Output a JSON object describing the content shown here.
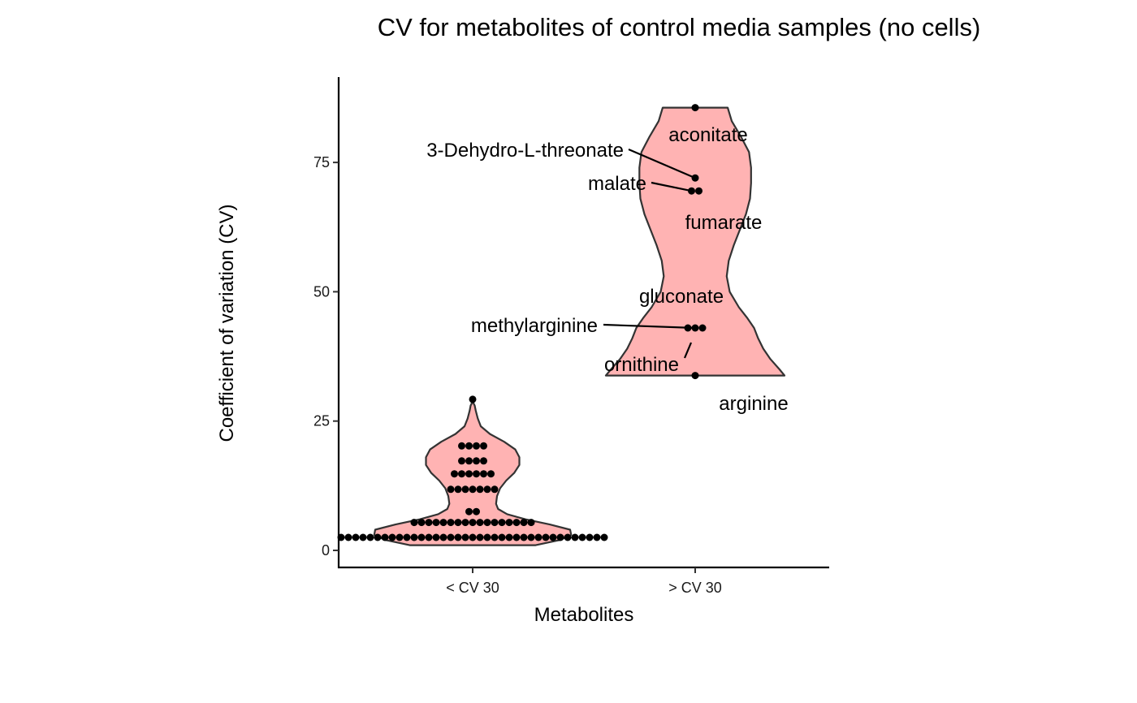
{
  "chart_data": {
    "type": "violin",
    "title": "CV for metabolites of control media samples (no cells)",
    "xlabel": "Metabolites",
    "ylabel": "Coefficient of variation (CV)",
    "categories": [
      "< CV 30",
      "> CV 30"
    ],
    "ylim": [
      -3.3,
      91.5
    ],
    "yticks": [
      0,
      25,
      50,
      75
    ],
    "grid": false,
    "legend": "none",
    "colors": {
      "violin_fill": "#ffb3b3",
      "violin_stroke": "#333333",
      "point": "#000000"
    },
    "groups": [
      {
        "category": "< CV 30",
        "levels": [
          {
            "cv": 2.5,
            "count": 37
          },
          {
            "cv": 5.4,
            "count": 17
          },
          {
            "cv": 7.5,
            "count": 2
          },
          {
            "cv": 11.8,
            "count": 7
          },
          {
            "cv": 14.8,
            "count": 6
          },
          {
            "cv": 17.3,
            "count": 4
          },
          {
            "cv": 20.2,
            "count": 4
          },
          {
            "cv": 29.2,
            "count": 1
          }
        ],
        "violin_profile": [
          [
            1.0,
            0.0
          ],
          [
            1.0,
            0.62
          ],
          [
            2.0,
            0.86
          ],
          [
            3.0,
            0.97
          ],
          [
            4.0,
            0.96
          ],
          [
            5.0,
            0.76
          ],
          [
            6.0,
            0.52
          ],
          [
            7.0,
            0.34
          ],
          [
            8.0,
            0.25
          ],
          [
            9.0,
            0.23
          ],
          [
            10.5,
            0.24
          ],
          [
            12.0,
            0.27
          ],
          [
            13.5,
            0.33
          ],
          [
            15.0,
            0.41
          ],
          [
            16.5,
            0.46
          ],
          [
            18.0,
            0.46
          ],
          [
            19.5,
            0.42
          ],
          [
            21.0,
            0.31
          ],
          [
            22.5,
            0.17
          ],
          [
            24.0,
            0.08
          ],
          [
            25.5,
            0.05
          ],
          [
            27.0,
            0.03
          ],
          [
            28.0,
            0.02
          ],
          [
            28.8,
            0.0
          ]
        ]
      },
      {
        "category": "> CV 30",
        "points": [
          {
            "name": "aconitate",
            "cv": 85.6
          },
          {
            "name": "3-Dehydro-L-threonate",
            "cv": 72.0
          },
          {
            "name": "malate",
            "cv": 69.5
          },
          {
            "name": "fumarate",
            "cv": 69.5
          },
          {
            "name": "gluconate",
            "cv": 43.0
          },
          {
            "name": "methylarginine",
            "cv": 43.0
          },
          {
            "name": "ornithine",
            "cv": 43.0
          },
          {
            "name": "arginine",
            "cv": 33.8
          }
        ],
        "violin_profile": [
          [
            33.8,
            0.88
          ],
          [
            35.0,
            0.83
          ],
          [
            37.0,
            0.74
          ],
          [
            39.0,
            0.67
          ],
          [
            41.0,
            0.62
          ],
          [
            43.0,
            0.58
          ],
          [
            45.0,
            0.51
          ],
          [
            47.0,
            0.43
          ],
          [
            50.0,
            0.34
          ],
          [
            53.0,
            0.31
          ],
          [
            56.0,
            0.33
          ],
          [
            59.0,
            0.38
          ],
          [
            62.0,
            0.44
          ],
          [
            65.0,
            0.5
          ],
          [
            68.0,
            0.54
          ],
          [
            71.0,
            0.55
          ],
          [
            74.0,
            0.55
          ],
          [
            77.0,
            0.53
          ],
          [
            80.0,
            0.45
          ],
          [
            83.0,
            0.36
          ],
          [
            85.6,
            0.32
          ]
        ]
      }
    ]
  }
}
